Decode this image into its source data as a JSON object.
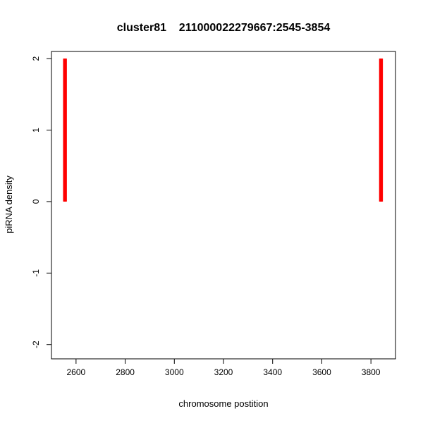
{
  "chart_data": {
    "type": "bar",
    "title": "cluster81    211000022279667:2545-3854",
    "xlabel": "chromosome postition",
    "ylabel": "piRNA density",
    "xlim": [
      2500,
      3900
    ],
    "ylim": [
      -2.2,
      2.1
    ],
    "xticks": [
      2600,
      2800,
      3000,
      3200,
      3400,
      3600,
      3800
    ],
    "yticks": [
      -2,
      -1,
      0,
      1,
      2
    ],
    "series": [
      {
        "color": "#ff0000",
        "segments": [
          {
            "x": 2553,
            "y0": 0,
            "y1": 2
          },
          {
            "x": 2555,
            "y0": 0,
            "y1": 2
          },
          {
            "x": 2557,
            "y0": 0,
            "y1": 2
          },
          {
            "x": 3839,
            "y0": 0,
            "y1": 2
          },
          {
            "x": 3841,
            "y0": 0,
            "y1": 2
          },
          {
            "x": 3843,
            "y0": 0,
            "y1": 2
          }
        ]
      }
    ],
    "grid": false,
    "box": true
  }
}
